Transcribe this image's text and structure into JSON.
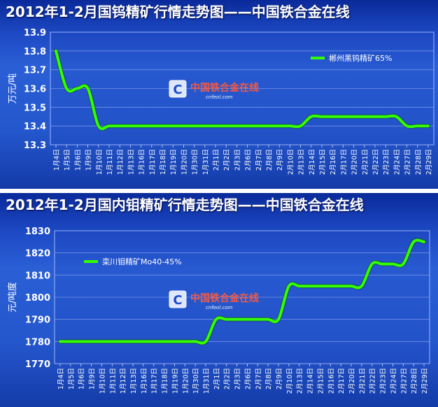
{
  "chart_data": [
    {
      "type": "line",
      "title": "2012年1-2月国钨精矿行情走势图——中国铁合金在线",
      "ylabel": "万元/吨",
      "ylim": [
        13.3,
        13.9
      ],
      "yticks": [
        "13.9",
        "13.8",
        "13.7",
        "13.6",
        "13.5",
        "13.4",
        "13.3"
      ],
      "ytick_values": [
        13.9,
        13.8,
        13.7,
        13.6,
        13.5,
        13.4,
        13.3
      ],
      "categories": [
        "1月4日",
        "1月5日",
        "1月6日",
        "1月9日",
        "1月10日",
        "1月11日",
        "1月12日",
        "1月13日",
        "1月16日",
        "1月17日",
        "1月18日",
        "1月19日",
        "1月20日",
        "1月30日",
        "1月31日",
        "2月1日",
        "2月2日",
        "2月3日",
        "2月6日",
        "2月7日",
        "2月8日",
        "2月9日",
        "2月10日",
        "2月13日",
        "2月14日",
        "2月15日",
        "2月16日",
        "2月17日",
        "2月20日",
        "2月21日",
        "2月22日",
        "2月23日",
        "2月24日",
        "2月27日",
        "2月28日",
        "2月29日"
      ],
      "series": [
        {
          "name": "郴州黑钨精矿65%",
          "values": [
            13.8,
            13.6,
            13.6,
            13.6,
            13.4,
            13.4,
            13.4,
            13.4,
            13.4,
            13.4,
            13.4,
            13.4,
            13.4,
            13.4,
            13.4,
            13.4,
            13.4,
            13.4,
            13.4,
            13.4,
            13.4,
            13.4,
            13.4,
            13.4,
            13.45,
            13.45,
            13.45,
            13.45,
            13.45,
            13.45,
            13.45,
            13.45,
            13.45,
            13.4,
            13.4,
            13.4
          ]
        }
      ],
      "grid": true,
      "legend": "top-right",
      "line_color": "#33ff00"
    },
    {
      "type": "line",
      "title": "2012年1-2月国内钼精矿行情走势图——中国铁合金在线",
      "ylabel": "元/吨度",
      "ylim": [
        1770,
        1830
      ],
      "yticks": [
        "1830",
        "1820",
        "1810",
        "1800",
        "1790",
        "1780",
        "1770"
      ],
      "ytick_values": [
        1830,
        1820,
        1810,
        1800,
        1790,
        1780,
        1770
      ],
      "categories": [
        "1月4日",
        "1月5日",
        "1月6日",
        "1月9日",
        "1月10日",
        "1月11日",
        "1月12日",
        "1月13日",
        "1月16日",
        "1月17日",
        "1月18日",
        "1月19日",
        "1月20日",
        "1月30日",
        "1月31日",
        "2月1日",
        "2月2日",
        "2月3日",
        "2月6日",
        "2月7日",
        "2月8日",
        "2月9日",
        "2月10日",
        "2月13日",
        "2月14日",
        "2月15日",
        "2月16日",
        "2月17日",
        "2月20日",
        "2月21日",
        "2月22日",
        "2月23日",
        "2月24日",
        "2月27日",
        "2月28日",
        "2月29日"
      ],
      "series": [
        {
          "name": "栾川钼精矿Mo40-45%",
          "values": [
            1780,
            1780,
            1780,
            1780,
            1780,
            1780,
            1780,
            1780,
            1780,
            1780,
            1780,
            1780,
            1780,
            1780,
            1780,
            1790,
            1790,
            1790,
            1790,
            1790,
            1790,
            1790,
            1805,
            1805,
            1805,
            1805,
            1805,
            1805,
            1805,
            1805,
            1815,
            1815,
            1815,
            1815,
            1825,
            1825
          ]
        }
      ],
      "grid": true,
      "legend": "top-left",
      "line_color": "#33ff00"
    }
  ],
  "watermark": {
    "logo_letter": "C",
    "text": "中国铁合金在线",
    "url": "cnfeol.com"
  }
}
